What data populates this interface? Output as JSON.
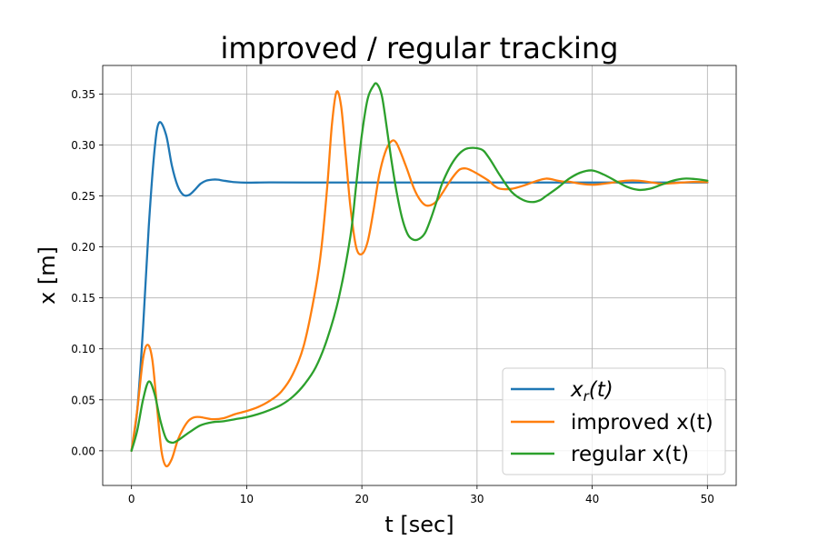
{
  "chart_data": {
    "type": "line",
    "title": "improved / regular tracking",
    "xlabel": "t [sec]",
    "ylabel": "x [m]",
    "xlim": [
      -2.5,
      52.5
    ],
    "ylim": [
      -0.034,
      0.378
    ],
    "xticks": [
      0,
      10,
      20,
      30,
      40,
      50
    ],
    "xtick_labels": [
      "0",
      "10",
      "20",
      "30",
      "40",
      "50"
    ],
    "yticks": [
      0.0,
      0.05,
      0.1,
      0.15,
      0.2,
      0.25,
      0.3,
      0.35
    ],
    "ytick_labels": [
      "0.00",
      "0.05",
      "0.10",
      "0.15",
      "0.20",
      "0.25",
      "0.30",
      "0.35"
    ],
    "grid": true,
    "legend_position": "lower right",
    "series": [
      {
        "name": "x_r(t)",
        "legend_main": "x",
        "legend_sub": "r",
        "legend_tail": "(t)",
        "color": "#1f77b4",
        "x": [
          0,
          0.5,
          1,
          1.5,
          2,
          2.4,
          3,
          3.5,
          4,
          4.5,
          5,
          5.5,
          6,
          6.5,
          7,
          7.5,
          8,
          9,
          10,
          12,
          15,
          20,
          30,
          40,
          50
        ],
        "y": [
          0,
          0.04,
          0.12,
          0.22,
          0.295,
          0.322,
          0.31,
          0.28,
          0.26,
          0.251,
          0.251,
          0.256,
          0.262,
          0.265,
          0.266,
          0.266,
          0.265,
          0.2635,
          0.263,
          0.2633,
          0.2632,
          0.2632,
          0.2632,
          0.2632,
          0.2632
        ]
      },
      {
        "name": "improved x(t)",
        "color": "#ff7f0e",
        "x": [
          0,
          0.5,
          1,
          1.4,
          1.8,
          2.2,
          2.6,
          3,
          3.5,
          4,
          4.5,
          5,
          5.5,
          6,
          7,
          8,
          9,
          10,
          11,
          12,
          13,
          14,
          15,
          16,
          16.5,
          17,
          17.4,
          17.8,
          18.2,
          18.6,
          19,
          19.5,
          20,
          20.5,
          21,
          21.5,
          22,
          22.5,
          23,
          23.8,
          24.5,
          25,
          25.5,
          26,
          26.5,
          27,
          27.5,
          28,
          28.5,
          29,
          29.5,
          30.3,
          31,
          31.5,
          32,
          33,
          34,
          35,
          36,
          37,
          37.5,
          38,
          39,
          40,
          41,
          42,
          43,
          44,
          45,
          46,
          47,
          48,
          49,
          50
        ],
        "y": [
          0,
          0.04,
          0.09,
          0.104,
          0.09,
          0.045,
          0.0,
          -0.015,
          -0.008,
          0.01,
          0.022,
          0.03,
          0.033,
          0.033,
          0.031,
          0.032,
          0.036,
          0.039,
          0.043,
          0.049,
          0.058,
          0.075,
          0.105,
          0.16,
          0.2,
          0.26,
          0.32,
          0.352,
          0.338,
          0.29,
          0.24,
          0.2,
          0.193,
          0.205,
          0.235,
          0.27,
          0.292,
          0.303,
          0.302,
          0.28,
          0.258,
          0.247,
          0.241,
          0.241,
          0.245,
          0.253,
          0.262,
          0.27,
          0.276,
          0.277,
          0.275,
          0.27,
          0.265,
          0.26,
          0.257,
          0.257,
          0.26,
          0.264,
          0.267,
          0.265,
          0.264,
          0.264,
          0.262,
          0.261,
          0.262,
          0.2635,
          0.265,
          0.265,
          0.2635,
          0.262,
          0.2625,
          0.2633,
          0.2638,
          0.2635
        ]
      },
      {
        "name": "regular x(t)",
        "color": "#2ca02c",
        "x": [
          0,
          0.5,
          1,
          1.5,
          2,
          2.5,
          3,
          3.5,
          4,
          5,
          6,
          7,
          8,
          9,
          10,
          11,
          12,
          13,
          14,
          15,
          16,
          17,
          18,
          19,
          19.5,
          20,
          20.5,
          21,
          21.3,
          21.7,
          22,
          22.5,
          23,
          23.5,
          24,
          24.5,
          25,
          25.5,
          26,
          26.5,
          27,
          28,
          29,
          30.3,
          31,
          32,
          33,
          34,
          34.8,
          35.5,
          36,
          37,
          38,
          39,
          40,
          41,
          42,
          43,
          44,
          45,
          46,
          47,
          48,
          49,
          50
        ],
        "y": [
          0,
          0.02,
          0.05,
          0.068,
          0.056,
          0.03,
          0.012,
          0.008,
          0.01,
          0.018,
          0.025,
          0.028,
          0.029,
          0.031,
          0.033,
          0.036,
          0.04,
          0.045,
          0.053,
          0.065,
          0.082,
          0.11,
          0.15,
          0.21,
          0.26,
          0.31,
          0.345,
          0.358,
          0.36,
          0.35,
          0.33,
          0.29,
          0.255,
          0.228,
          0.212,
          0.207,
          0.208,
          0.214,
          0.228,
          0.245,
          0.263,
          0.285,
          0.296,
          0.296,
          0.288,
          0.27,
          0.254,
          0.246,
          0.244,
          0.246,
          0.25,
          0.258,
          0.267,
          0.273,
          0.275,
          0.271,
          0.265,
          0.259,
          0.256,
          0.257,
          0.261,
          0.265,
          0.267,
          0.2665,
          0.265
        ]
      }
    ]
  }
}
